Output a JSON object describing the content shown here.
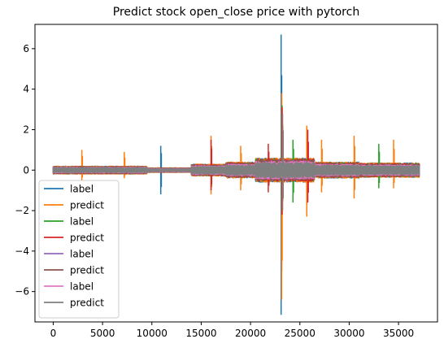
{
  "chart_data": {
    "type": "line",
    "title": "Predict stock open_close price with pytorch",
    "xlabel": "",
    "ylabel": "",
    "xlim": [
      -1850,
      38950
    ],
    "ylim": [
      -7.5,
      7.2
    ],
    "grid": false,
    "legend_placement": "lower-left",
    "x_ticks": [
      0,
      5000,
      10000,
      15000,
      20000,
      25000,
      30000,
      35000
    ],
    "y_ticks": [
      -6,
      -4,
      -2,
      0,
      2,
      4,
      6
    ],
    "x_tick_labels": [
      "0",
      "5000",
      "10000",
      "15000",
      "20000",
      "25000",
      "30000",
      "35000"
    ],
    "y_tick_labels": [
      "−6",
      "−4",
      "−2",
      "0",
      "2",
      "4",
      "6"
    ],
    "x_range": [
      0,
      37100
    ],
    "series": [
      {
        "name": "label",
        "color": "#1f77b4",
        "amplitude": 0.55
      },
      {
        "name": "predict",
        "color": "#ff7f0e",
        "amplitude": 0.55
      },
      {
        "name": "label",
        "color": "#2ca02c",
        "amplitude": 0.5
      },
      {
        "name": "predict",
        "color": "#d62728",
        "amplitude": 0.5
      },
      {
        "name": "label",
        "color": "#9467bd",
        "amplitude": 0.45
      },
      {
        "name": "predict",
        "color": "#8c564b",
        "amplitude": 0.45
      },
      {
        "name": "label",
        "color": "#e377c2",
        "amplitude": 0.4
      },
      {
        "name": "predict",
        "color": "#7f7f7f",
        "amplitude": 0.35
      }
    ],
    "peaks": [
      {
        "series": 0,
        "x": 23100,
        "max": 6.7,
        "min": -7.15
      },
      {
        "series": 1,
        "x": 23150,
        "max": 3.8,
        "min": -6.4
      },
      {
        "series": 2,
        "x": 23200,
        "max": 3.2,
        "min": -1.5
      },
      {
        "series": 3,
        "x": 23200,
        "max": 3.1,
        "min": -2.2
      },
      {
        "series": 7,
        "x": 23250,
        "max": 2.8,
        "min": -2.0
      },
      {
        "series": 1,
        "x": 16000,
        "max": 1.7,
        "min": -1.2
      },
      {
        "series": 3,
        "x": 16000,
        "max": 1.5,
        "min": -1.0
      },
      {
        "series": 1,
        "x": 25700,
        "max": 2.2,
        "min": -2.3
      },
      {
        "series": 3,
        "x": 25800,
        "max": 2.0,
        "min": -1.6
      },
      {
        "series": 0,
        "x": 10900,
        "max": 1.2,
        "min": -1.2
      },
      {
        "series": 1,
        "x": 30500,
        "max": 1.7,
        "min": -1.4
      },
      {
        "series": 1,
        "x": 34500,
        "max": 1.5,
        "min": -0.9
      },
      {
        "series": 2,
        "x": 33000,
        "max": 1.3,
        "min": -0.9
      },
      {
        "series": 1,
        "x": 19000,
        "max": 1.2,
        "min": -1.0
      },
      {
        "series": 3,
        "x": 21800,
        "max": 1.3,
        "min": -1.1
      },
      {
        "series": 2,
        "x": 24300,
        "max": 1.5,
        "min": -1.6
      },
      {
        "series": 1,
        "x": 2900,
        "max": 1.0,
        "min": -0.5
      },
      {
        "series": 1,
        "x": 7200,
        "max": 0.9,
        "min": -0.4
      },
      {
        "series": 1,
        "x": 27200,
        "max": 1.5,
        "min": -1.1
      }
    ]
  }
}
